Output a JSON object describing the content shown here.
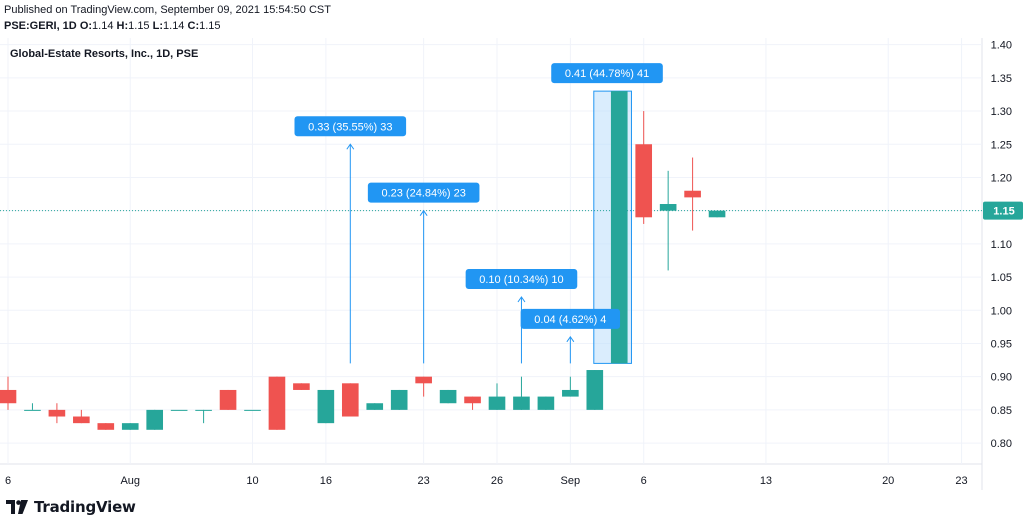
{
  "header": {
    "published": "Published on TradingView.com, September 09, 2021 15:54:50 CST",
    "symbol": "PSE:GERI, 1D",
    "o_label": "O:",
    "o_value": "1.14",
    "h_label": "H:",
    "h_value": "1.15",
    "l_label": "L:",
    "l_value": "1.14",
    "c_label": "C:",
    "c_value": "1.15"
  },
  "footer": {
    "brand": "TradingView",
    "logo_icon": "tradingview-logo-icon"
  },
  "colors": {
    "up": "#26a69a",
    "down": "#ef5350",
    "callout": "#2196f3",
    "highlight": "#bbdefb",
    "grid": "#f0f3fa",
    "price_line": "#26a69a"
  },
  "chart_data": {
    "type": "candlestick",
    "title": "Global-Estate Resorts, Inc., 1D, PSE",
    "ylim": [
      0.77,
      1.41
    ],
    "y_ticks": [
      "0.80",
      "0.85",
      "0.90",
      "0.95",
      "1.00",
      "1.05",
      "1.10",
      "1.15",
      "1.20",
      "1.25",
      "1.30",
      "1.35",
      "1.40"
    ],
    "x_ticks": [
      {
        "label": "6",
        "i": 0
      },
      {
        "label": "Aug",
        "i": 5
      },
      {
        "label": "10",
        "i": 10
      },
      {
        "label": "16",
        "i": 13
      },
      {
        "label": "23",
        "i": 17
      },
      {
        "label": "26",
        "i": 20
      },
      {
        "label": "Sep",
        "i": 23
      },
      {
        "label": "6",
        "i": 26
      },
      {
        "label": "13",
        "i": 31
      },
      {
        "label": "20",
        "i": 36
      },
      {
        "label": "23",
        "i": 39
      }
    ],
    "candles": [
      {
        "o": 0.88,
        "h": 0.9,
        "l": 0.85,
        "c": 0.86
      },
      {
        "o": 0.85,
        "h": 0.86,
        "l": 0.85,
        "c": 0.85
      },
      {
        "o": 0.85,
        "h": 0.86,
        "l": 0.83,
        "c": 0.84
      },
      {
        "o": 0.84,
        "h": 0.85,
        "l": 0.83,
        "c": 0.83
      },
      {
        "o": 0.83,
        "h": 0.83,
        "l": 0.82,
        "c": 0.82
      },
      {
        "o": 0.82,
        "h": 0.83,
        "l": 0.82,
        "c": 0.83
      },
      {
        "o": 0.82,
        "h": 0.85,
        "l": 0.82,
        "c": 0.85
      },
      {
        "o": 0.85,
        "h": 0.85,
        "l": 0.85,
        "c": 0.85
      },
      {
        "o": 0.85,
        "h": 0.85,
        "l": 0.83,
        "c": 0.85
      },
      {
        "o": 0.88,
        "h": 0.88,
        "l": 0.85,
        "c": 0.85
      },
      {
        "o": 0.85,
        "h": 0.85,
        "l": 0.85,
        "c": 0.85
      },
      {
        "o": 0.9,
        "h": 0.9,
        "l": 0.82,
        "c": 0.82
      },
      {
        "o": 0.89,
        "h": 0.89,
        "l": 0.88,
        "c": 0.88
      },
      {
        "o": 0.83,
        "h": 0.88,
        "l": 0.83,
        "c": 0.88
      },
      {
        "o": 0.89,
        "h": 0.89,
        "l": 0.84,
        "c": 0.84
      },
      {
        "o": 0.85,
        "h": 0.86,
        "l": 0.85,
        "c": 0.86
      },
      {
        "o": 0.85,
        "h": 0.88,
        "l": 0.85,
        "c": 0.88
      },
      {
        "o": 0.9,
        "h": 0.9,
        "l": 0.87,
        "c": 0.89
      },
      {
        "o": 0.86,
        "h": 0.88,
        "l": 0.86,
        "c": 0.88
      },
      {
        "o": 0.87,
        "h": 0.87,
        "l": 0.85,
        "c": 0.86
      },
      {
        "o": 0.85,
        "h": 0.89,
        "l": 0.85,
        "c": 0.87
      },
      {
        "o": 0.85,
        "h": 0.9,
        "l": 0.85,
        "c": 0.87
      },
      {
        "o": 0.85,
        "h": 0.87,
        "l": 0.85,
        "c": 0.87
      },
      {
        "o": 0.87,
        "h": 0.9,
        "l": 0.87,
        "c": 0.88
      },
      {
        "o": 0.85,
        "h": 0.91,
        "l": 0.85,
        "c": 0.91
      },
      {
        "o": 0.92,
        "h": 1.33,
        "l": 0.92,
        "c": 1.33
      },
      {
        "o": 1.25,
        "h": 1.3,
        "l": 1.13,
        "c": 1.14
      },
      {
        "o": 1.15,
        "h": 1.21,
        "l": 1.06,
        "c": 1.16
      },
      {
        "o": 1.18,
        "h": 1.23,
        "l": 1.12,
        "c": 1.17
      },
      {
        "o": 1.14,
        "h": 1.15,
        "l": 1.14,
        "c": 1.15
      }
    ],
    "last_price": 1.15,
    "last_price_label": "1.15",
    "measurements": [
      {
        "label": "0.33 (35.55%) 33",
        "i": 14,
        "from": 0.92,
        "to": 1.25
      },
      {
        "label": "0.23 (24.84%) 23",
        "i": 17,
        "from": 0.92,
        "to": 1.15
      },
      {
        "label": "0.10 (10.34%) 10",
        "i": 21,
        "from": 0.92,
        "to": 1.02
      },
      {
        "label": "0.04 (4.62%) 4",
        "i": 23,
        "from": 0.92,
        "to": 0.96
      },
      {
        "label": "0.41 (44.78%) 41",
        "i_from": 24,
        "i_to": 25,
        "from": 0.92,
        "to": 1.33,
        "boxed": true
      }
    ]
  }
}
